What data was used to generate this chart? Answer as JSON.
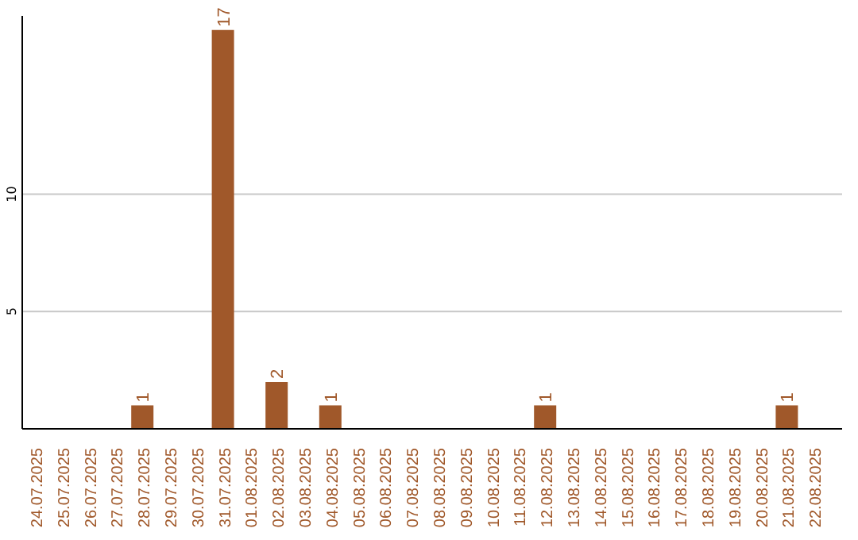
{
  "chart_data": {
    "type": "bar",
    "categories": [
      "24.07.2025",
      "25.07.2025",
      "26.07.2025",
      "27.07.2025",
      "28.07.2025",
      "29.07.2025",
      "30.07.2025",
      "31.07.2025",
      "01.08.2025",
      "02.08.2025",
      "03.08.2025",
      "04.08.2025",
      "05.08.2025",
      "06.08.2025",
      "07.08.2025",
      "08.08.2025",
      "09.08.2025",
      "10.08.2025",
      "11.08.2025",
      "12.08.2025",
      "13.08.2025",
      "14.08.2025",
      "15.08.2025",
      "16.08.2025",
      "17.08.2025",
      "18.08.2025",
      "19.08.2025",
      "20.08.2025",
      "21.08.2025",
      "22.08.2025"
    ],
    "values": [
      0,
      0,
      0,
      0,
      1,
      0,
      0,
      17,
      0,
      2,
      0,
      1,
      0,
      0,
      0,
      0,
      0,
      0,
      0,
      1,
      0,
      0,
      0,
      0,
      0,
      0,
      0,
      0,
      1,
      0
    ],
    "value_labels": [
      null,
      null,
      null,
      null,
      "1",
      null,
      null,
      "17",
      null,
      "2",
      null,
      "1",
      null,
      null,
      null,
      null,
      null,
      null,
      null,
      "1",
      null,
      null,
      null,
      null,
      null,
      null,
      null,
      null,
      "1",
      null
    ],
    "color": "#a0582a",
    "ylim": [
      0,
      17.6
    ],
    "yticks": [
      5,
      10
    ],
    "grid": "y"
  }
}
